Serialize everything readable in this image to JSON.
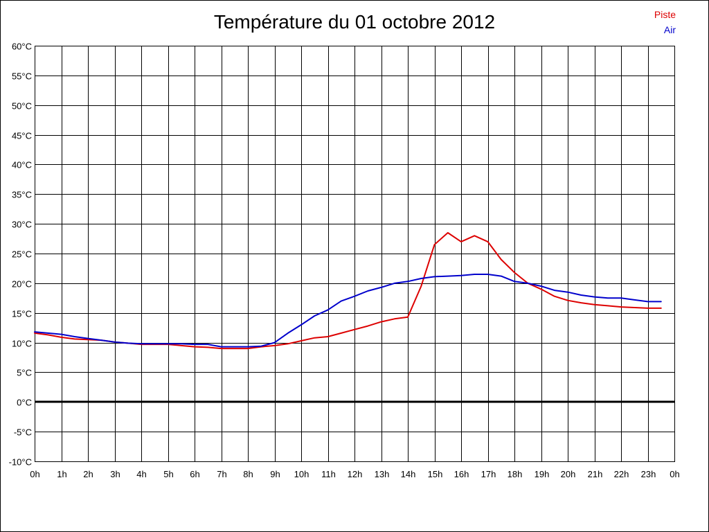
{
  "chart_data": {
    "type": "line",
    "title": "Température du 01 octobre 2012",
    "xlabel": "",
    "ylabel": "",
    "ylim": [
      -10,
      60
    ],
    "xlim": [
      0,
      24
    ],
    "grid": true,
    "legend_position": "top-right",
    "y_ticks": [
      "60°C",
      "55°C",
      "50°C",
      "45°C",
      "40°C",
      "35°C",
      "30°C",
      "25°C",
      "20°C",
      "15°C",
      "10°C",
      "5°C",
      "0°C",
      "-5°C",
      "-10°C"
    ],
    "y_tick_values": [
      60,
      55,
      50,
      45,
      40,
      35,
      30,
      25,
      20,
      15,
      10,
      5,
      0,
      -5,
      -10
    ],
    "x_ticks": [
      "0h",
      "1h",
      "2h",
      "3h",
      "4h",
      "5h",
      "6h",
      "7h",
      "8h",
      "9h",
      "10h",
      "11h",
      "12h",
      "13h",
      "14h",
      "15h",
      "16h",
      "17h",
      "18h",
      "19h",
      "20h",
      "21h",
      "22h",
      "23h",
      "0h"
    ],
    "series": [
      {
        "name": "Piste",
        "color": "#dd0000",
        "x": [
          0,
          0.5,
          1,
          1.5,
          2,
          2.5,
          3,
          3.5,
          4,
          4.5,
          5,
          5.5,
          6,
          6.5,
          7,
          7.5,
          8,
          8.5,
          9,
          9.5,
          10,
          10.5,
          11,
          11.5,
          12,
          12.5,
          13,
          13.5,
          14,
          14.5,
          15,
          15.5,
          16,
          16.5,
          17,
          17.5,
          18,
          18.5,
          19,
          19.5,
          20,
          20.5,
          21,
          21.5,
          22,
          22.5,
          23,
          23.5
        ],
        "values": [
          11.6,
          11.3,
          10.9,
          10.6,
          10.5,
          10.4,
          10.1,
          9.9,
          9.7,
          9.7,
          9.7,
          9.5,
          9.3,
          9.2,
          9.0,
          9.0,
          9.0,
          9.3,
          9.5,
          9.8,
          10.3,
          10.8,
          11.0,
          11.6,
          12.2,
          12.8,
          13.5,
          14.0,
          14.3,
          19.5,
          26.5,
          28.5,
          27.0,
          28.0,
          27.0,
          24.0,
          21.8,
          20.0,
          19.0,
          17.8,
          17.1,
          16.7,
          16.4,
          16.2,
          16.0,
          15.9,
          15.8,
          15.8
        ]
      },
      {
        "name": "Air",
        "color": "#0000cc",
        "x": [
          0,
          0.5,
          1,
          1.5,
          2,
          2.5,
          3,
          3.5,
          4,
          4.5,
          5,
          5.5,
          6,
          6.5,
          7,
          7.5,
          8,
          8.5,
          9,
          9.5,
          10,
          10.5,
          11,
          11.5,
          12,
          12.5,
          13,
          13.5,
          14,
          14.5,
          15,
          15.5,
          16,
          16.5,
          17,
          17.5,
          18,
          18.5,
          19,
          19.5,
          20,
          20.5,
          21,
          21.5,
          22,
          22.5,
          23,
          23.5
        ],
        "values": [
          11.8,
          11.6,
          11.4,
          11.0,
          10.7,
          10.4,
          10.1,
          9.9,
          9.8,
          9.8,
          9.8,
          9.8,
          9.7,
          9.7,
          9.3,
          9.3,
          9.3,
          9.4,
          10.0,
          11.6,
          13.0,
          14.5,
          15.5,
          17.0,
          17.8,
          18.7,
          19.3,
          20.0,
          20.3,
          20.8,
          21.1,
          21.2,
          21.3,
          21.5,
          21.5,
          21.2,
          20.3,
          20.0,
          19.5,
          18.8,
          18.5,
          18.0,
          17.7,
          17.5,
          17.5,
          17.2,
          16.9,
          16.9
        ]
      }
    ]
  }
}
